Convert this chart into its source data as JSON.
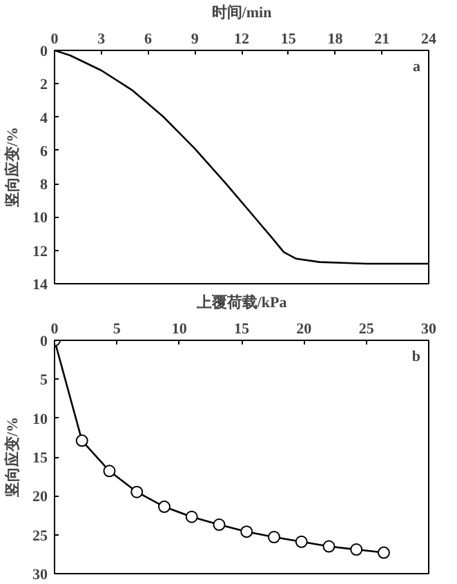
{
  "chart_data": [
    {
      "type": "line",
      "xlabel": "时间/min",
      "ylabel": "竖向应变/%",
      "annotations": [
        "a"
      ],
      "xlim": [
        0,
        24
      ],
      "xticks": [
        0,
        3,
        6,
        9,
        12,
        15,
        18,
        21,
        24
      ],
      "ylim": [
        14,
        0
      ],
      "yticks": [
        0,
        2,
        4,
        6,
        8,
        10,
        12,
        14
      ],
      "grid": false,
      "marker": "none",
      "line_style": "solid",
      "series": [
        {
          "color": "#000000",
          "x": [
            0,
            1,
            3,
            5,
            7,
            9,
            11,
            13,
            14,
            14.7,
            15.5,
            17,
            20,
            24
          ],
          "values": [
            0,
            0.3,
            1.2,
            2.4,
            4,
            5.9,
            8,
            10.2,
            11.3,
            12.1,
            12.5,
            12.7,
            12.8,
            12.8
          ]
        }
      ]
    },
    {
      "type": "line",
      "xlabel": "上覆荷载/kPa",
      "ylabel": "竖向应变/%",
      "annotations": [
        "b"
      ],
      "xlim": [
        0,
        30
      ],
      "xticks": [
        0,
        5,
        10,
        15,
        20,
        25,
        30
      ],
      "ylim": [
        30,
        0
      ],
      "yticks": [
        0,
        5,
        10,
        15,
        20,
        25,
        30
      ],
      "grid": false,
      "marker": "circle",
      "line_style": "solid",
      "series": [
        {
          "color": "#000000",
          "x": [
            0,
            2.2,
            4.4,
            6.6,
            8.8,
            11,
            13.2,
            15.4,
            17.6,
            19.8,
            22,
            24.2,
            26.4
          ],
          "values": [
            0,
            12.9,
            16.8,
            19.5,
            21.4,
            22.7,
            23.7,
            24.6,
            25.3,
            25.9,
            26.5,
            26.9,
            27.3
          ]
        }
      ]
    }
  ]
}
